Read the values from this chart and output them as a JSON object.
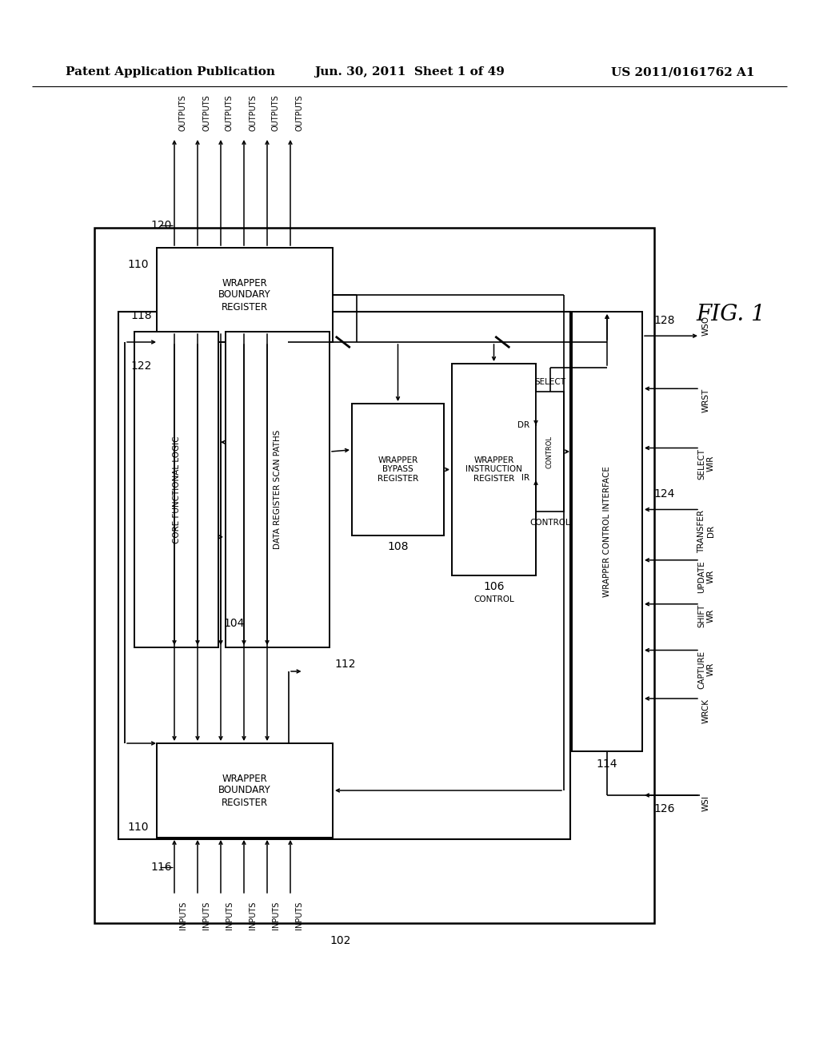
{
  "bg_color": "#ffffff",
  "header_left": "Patent Application Publication",
  "header_center": "Jun. 30, 2011  Sheet 1 of 49",
  "header_right": "US 2011/0161762 A1",
  "fig_label": "FIG. 1"
}
